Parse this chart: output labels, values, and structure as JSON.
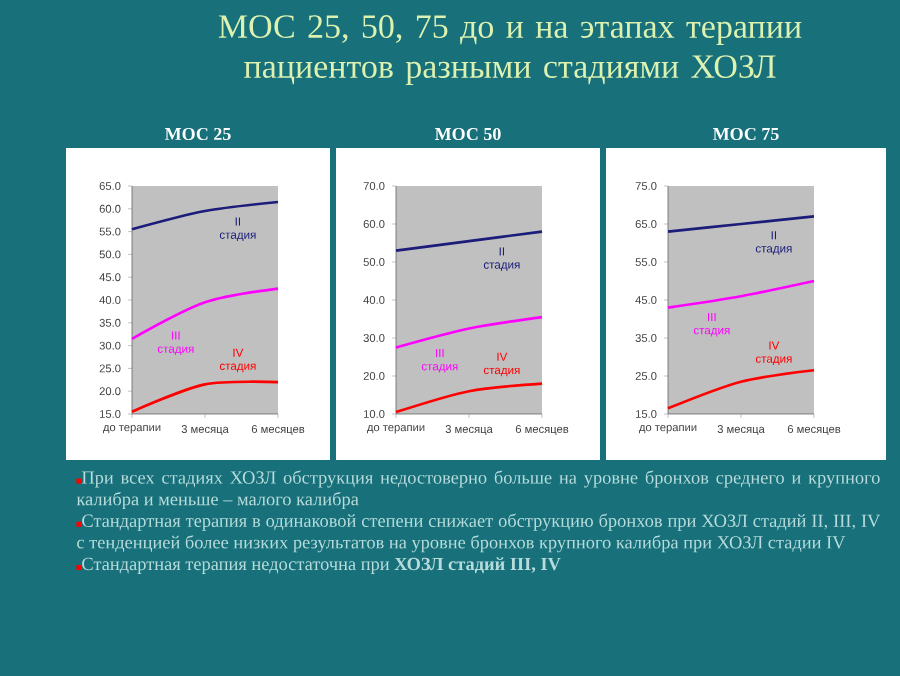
{
  "chart_data": [
    {
      "type": "other",
      "title": "МОС 25, 50, 75 до и на этапах терапии пациентов разными стадиями ХОЗЛ"
    },
    {
      "type": "line",
      "title": "МОС 25",
      "categories": [
        "до терапии",
        "3 месяца",
        "6 месяцев"
      ],
      "ylim": [
        15,
        65
      ],
      "yticks": [
        {
          "value": 15,
          "label": "15.0"
        },
        {
          "value": 20,
          "label": "20.0"
        },
        {
          "value": 25,
          "label": "25.0"
        },
        {
          "value": 30,
          "label": "30.0"
        },
        {
          "value": 35,
          "label": "35.0"
        },
        {
          "value": 40,
          "label": "40.0"
        },
        {
          "value": 45,
          "label": "45.0"
        },
        {
          "value": 50,
          "label": "50.0"
        },
        {
          "value": 55,
          "label": "55.0"
        },
        {
          "value": 60,
          "label": "60.0"
        },
        {
          "value": 65,
          "label": "65.0"
        }
      ],
      "legend": false,
      "grid": false,
      "marker": "none",
      "series": [
        {
          "name": "II стадия",
          "color": "#1c1c7a",
          "values": [
            55.5,
            59.5,
            61.5
          ]
        },
        {
          "name": "III стадия",
          "color": "#ff00ff",
          "values": [
            31.5,
            39.5,
            42.5
          ]
        },
        {
          "name": "IV стадия",
          "color": "#ff0000",
          "values": [
            15.5,
            21.5,
            22
          ]
        }
      ]
    },
    {
      "type": "line",
      "title": "МОС 50",
      "categories": [
        "до терапии",
        "3 месяца",
        "6 месяцев"
      ],
      "ylim": [
        10,
        70
      ],
      "yticks": [
        {
          "value": 10,
          "label": "10.0"
        },
        {
          "value": 20,
          "label": "20.0"
        },
        {
          "value": 30,
          "label": "30.0"
        },
        {
          "value": 40,
          "label": "40.0"
        },
        {
          "value": 50,
          "label": "50.0"
        },
        {
          "value": 60,
          "label": "60.0"
        },
        {
          "value": 70,
          "label": "70.0"
        }
      ],
      "legend": false,
      "grid": false,
      "marker": "none",
      "series": [
        {
          "name": "II стадия",
          "color": "#1c1c7a",
          "values": [
            53,
            55.5,
            58
          ]
        },
        {
          "name": "III стадия",
          "color": "#ff00ff",
          "values": [
            27.5,
            32.5,
            35.5
          ]
        },
        {
          "name": "IV стадия",
          "color": "#ff0000",
          "values": [
            10.5,
            16,
            18
          ]
        }
      ]
    },
    {
      "type": "line",
      "title": "МОС 75",
      "categories": [
        "до терапии",
        "3 месяца",
        "6 месяцев"
      ],
      "ylim": [
        15,
        75
      ],
      "yticks": [
        {
          "value": 15,
          "label": "15.0"
        },
        {
          "value": 25,
          "label": "25.0"
        },
        {
          "value": 35,
          "label": "35.0"
        },
        {
          "value": 45,
          "label": "45.0"
        },
        {
          "value": 55,
          "label": "55.0"
        },
        {
          "value": 65,
          "label": "65.0"
        },
        {
          "value": 75,
          "label": "75.0"
        }
      ],
      "legend": false,
      "grid": false,
      "marker": "none",
      "series": [
        {
          "name": "II стадия",
          "color": "#1c1c7a",
          "values": [
            63,
            65,
            67
          ]
        },
        {
          "name": "III стадия",
          "color": "#ff00ff",
          "values": [
            43,
            46,
            50
          ]
        },
        {
          "name": "IV стадия",
          "color": "#ff0000",
          "values": [
            16.5,
            23.5,
            26.5
          ]
        }
      ]
    },
    {
      "type": "other",
      "annotations": [
        "При всех стадиях ХОЗЛ обструкция недостоверно больше на уровне бронхов среднего и крупного калибра и меньше – малого калибра",
        "Стандартная терапия в одинаковой степени снижает обструкцию бронхов при ХОЗЛ стадий II, III, IV с тенденцией более низких результатов на уровне бронхов крупного калибра при ХОЗЛ стадии IV",
        "Стандартная терапия недостаточна при **ХОЗЛ стадий III, IV**"
      ]
    }
  ]
}
